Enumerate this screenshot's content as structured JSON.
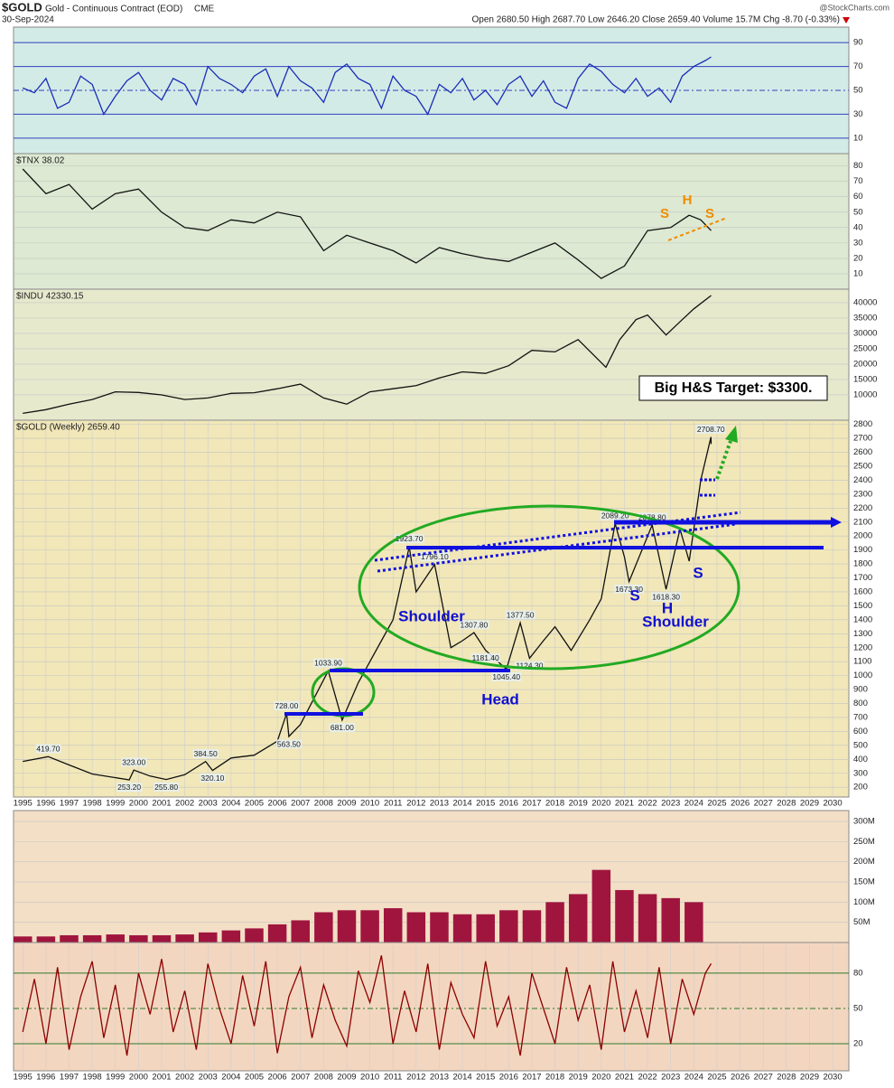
{
  "header": {
    "symbol": "$GOLD",
    "name": "Gold - Continuous Contract (EOD)",
    "exchange": "CME",
    "date": "30-Sep-2024",
    "quote": "Open 2680.50  High 2687.70  Low 2646.20  Close 2659.40  Volume 15.7M  Chg -8.70 (-0.33%)",
    "watermark": "@StockCharts.com"
  },
  "chart_data": [
    {
      "type": "line",
      "color": "#1a2db8",
      "grid_color": "#3040c0",
      "x": [
        1995,
        1995.5,
        1996,
        1996.5,
        1997,
        1997.5,
        1998,
        1998.5,
        1999,
        1999.5,
        2000,
        2000.5,
        2001,
        2001.5,
        2002,
        2002.5,
        2003,
        2003.5,
        2004,
        2004.5,
        2005,
        2005.5,
        2006,
        2006.5,
        2007,
        2007.5,
        2008,
        2008.5,
        2009,
        2009.5,
        2010,
        2010.5,
        2011,
        2011.5,
        2012,
        2012.5,
        2013,
        2013.5,
        2014,
        2014.5,
        2015,
        2015.5,
        2016,
        2016.5,
        2017,
        2017.5,
        2018,
        2018.5,
        2019,
        2019.5,
        2020,
        2020.5,
        2021,
        2021.5,
        2022,
        2022.5,
        2023,
        2023.5,
        2024,
        2024.5,
        2024.75
      ],
      "values": [
        52,
        48,
        60,
        35,
        40,
        62,
        55,
        30,
        45,
        58,
        65,
        50,
        42,
        60,
        55,
        38,
        70,
        60,
        55,
        48,
        62,
        68,
        45,
        70,
        58,
        52,
        40,
        65,
        72,
        60,
        55,
        35,
        62,
        50,
        45,
        30,
        55,
        48,
        60,
        42,
        50,
        38,
        55,
        62,
        45,
        58,
        40,
        35,
        60,
        72,
        66,
        55,
        48,
        60,
        45,
        52,
        40,
        62,
        70,
        75,
        78
      ],
      "xlim": [
        1994.6,
        2030.7
      ],
      "ylim": [
        -3,
        103
      ],
      "yticks": [
        10,
        30,
        50,
        70,
        90
      ]
    },
    {
      "type": "line",
      "label": "$TNX 38.02",
      "color": "#111111",
      "grid_color": "#c4c4c4",
      "x": [
        1995,
        1996,
        1997,
        1998,
        1999,
        2000,
        2001,
        2002,
        2003,
        2004,
        2005,
        2006,
        2007,
        2008,
        2009,
        2010,
        2011,
        2012,
        2013,
        2014,
        2015,
        2016,
        2017,
        2018,
        2019,
        2020,
        2021,
        2022,
        2023,
        2023.8,
        2024.3,
        2024.75
      ],
      "values": [
        78,
        62,
        68,
        52,
        62,
        65,
        50,
        40,
        38,
        45,
        43,
        50,
        47,
        25,
        35,
        30,
        25,
        17,
        27,
        23,
        20,
        18,
        24,
        30,
        19,
        7,
        15,
        38,
        40,
        48,
        45,
        38.02
      ],
      "xlim": [
        1994.6,
        2030.7
      ],
      "ylim": [
        0,
        88
      ],
      "yticks": [
        10,
        20,
        30,
        40,
        50,
        60,
        70,
        80
      ],
      "notes": [
        "S",
        "H",
        "S"
      ]
    },
    {
      "type": "line",
      "label": "$INDU 42330.15",
      "color": "#111111",
      "grid_color": "#c4c4c4",
      "x": [
        1995,
        1996,
        1997,
        1998,
        1999,
        2000,
        2001,
        2002,
        2003,
        2004,
        2005,
        2006,
        2007,
        2008,
        2009,
        2010,
        2011,
        2012,
        2013,
        2014,
        2015,
        2016,
        2017,
        2018,
        2019,
        2020.2,
        2020.8,
        2021.5,
        2022,
        2022.8,
        2023.5,
        2024,
        2024.75
      ],
      "values": [
        4000,
        5200,
        7000,
        8500,
        11000,
        10800,
        10000,
        8500,
        9000,
        10500,
        10700,
        12000,
        13500,
        9000,
        7000,
        11000,
        12000,
        13000,
        15500,
        17500,
        17000,
        19500,
        24500,
        24000,
        28000,
        19000,
        28000,
        34500,
        36000,
        29500,
        34500,
        38000,
        42330.15
      ],
      "xlim": [
        1994.6,
        2030.7
      ],
      "ylim": [
        1760,
        44400
      ],
      "yticks": [
        10000,
        15000,
        20000,
        25000,
        30000,
        35000,
        40000
      ],
      "notes": [
        "Big H&S Target: $3300."
      ]
    },
    {
      "type": "line",
      "label": "$GOLD (Weekly) 2659.40",
      "color": "#111111",
      "grid_color": "#c4c4c4",
      "x": [
        1995,
        1996.1,
        1997,
        1998,
        1999.6,
        1999.8,
        2000.5,
        2001.2,
        2002,
        2002.9,
        2003.2,
        2004,
        2005,
        2006,
        2006.4,
        2006.5,
        2007,
        2008.2,
        2008.8,
        2009.5,
        2010,
        2010.5,
        2011,
        2011.7,
        2012,
        2012.8,
        2013.5,
        2014,
        2014.5,
        2015,
        2015.9,
        2016.5,
        2016.9,
        2017.5,
        2018,
        2018.7,
        2019.5,
        2020,
        2020.6,
        2021,
        2021.2,
        2022.2,
        2022.8,
        2023.4,
        2023.8,
        2024,
        2024.3,
        2024.74,
        2024.75
      ],
      "values": [
        385,
        419.7,
        360,
        295,
        253.2,
        323,
        280,
        255.8,
        290,
        384.5,
        320.1,
        410,
        430,
        530,
        728,
        563.5,
        650,
        1033.9,
        681,
        950,
        1100,
        1250,
        1400,
        1923.7,
        1600,
        1796.1,
        1200,
        1250,
        1307.8,
        1181.4,
        1045.4,
        1377.5,
        1124.3,
        1250,
        1350,
        1180,
        1400,
        1550,
        2089.2,
        1850,
        1673.3,
        2078.8,
        1618.3,
        2050,
        1820,
        2050,
        2400,
        2708.7,
        2659.4
      ],
      "value_labels": [
        null,
        "419.70",
        null,
        null,
        "253.20",
        "323.00",
        null,
        "255.80",
        null,
        "384.50",
        "320.10",
        null,
        null,
        null,
        "728.00",
        "563.50",
        null,
        "1033.90",
        "681.00",
        null,
        null,
        null,
        null,
        "1923.70",
        null,
        "1796.10",
        null,
        null,
        "1307.80",
        "1181.40",
        "1045.40",
        "1377.50",
        "1124.30",
        null,
        null,
        null,
        null,
        null,
        "2089.20",
        null,
        "1673.30",
        "2078.80",
        "1618.30",
        null,
        null,
        null,
        null,
        "2708.70",
        null
      ],
      "xlim": [
        1994.6,
        2030.7
      ],
      "ylim": [
        130,
        2830
      ],
      "yticks": [
        200,
        300,
        400,
        500,
        600,
        700,
        800,
        900,
        1000,
        1100,
        1200,
        1300,
        1400,
        1500,
        1600,
        1700,
        1800,
        1900,
        2000,
        2100,
        2200,
        2300,
        2400,
        2500,
        2600,
        2700,
        2800
      ],
      "xticks": [
        1995,
        1996,
        1997,
        1998,
        1999,
        2000,
        2001,
        2002,
        2003,
        2004,
        2005,
        2006,
        2007,
        2008,
        2009,
        2010,
        2011,
        2012,
        2013,
        2014,
        2015,
        2016,
        2017,
        2018,
        2019,
        2020,
        2021,
        2022,
        2023,
        2024,
        2025,
        2026,
        2027,
        2028,
        2029,
        2030
      ],
      "notes": [
        "Shoulder",
        "Head",
        "S",
        "H",
        "Shoulder",
        "S"
      ]
    },
    {
      "type": "bar",
      "color": "#a0153e",
      "grid_color": "#c4c4c4",
      "x": [
        1995,
        1996,
        1997,
        1998,
        1999,
        2000,
        2001,
        2002,
        2003,
        2004,
        2005,
        2006,
        2007,
        2008,
        2009,
        2010,
        2011,
        2012,
        2013,
        2014,
        2015,
        2016,
        2017,
        2018,
        2019,
        2020,
        2021,
        2022,
        2023,
        2024
      ],
      "values": [
        15000000,
        15000000,
        18000000,
        18000000,
        20000000,
        18000000,
        18000000,
        20000000,
        25000000,
        30000000,
        35000000,
        45000000,
        55000000,
        75000000,
        80000000,
        80000000,
        85000000,
        75000000,
        75000000,
        70000000,
        70000000,
        80000000,
        80000000,
        100000000,
        120000000,
        180000000,
        130000000,
        120000000,
        110000000,
        100000000
      ],
      "xlim": [
        1994.6,
        2030.7
      ],
      "ylim": [
        0,
        327000000
      ],
      "yticks": [
        {
          "value": 50000000,
          "label": "50M"
        },
        {
          "value": 100000000,
          "label": "100M"
        },
        {
          "value": 150000000,
          "label": "150M"
        },
        {
          "value": 200000000,
          "label": "200M"
        },
        {
          "value": 250000000,
          "label": "250M"
        },
        {
          "value": 300000000,
          "label": "300M"
        }
      ]
    },
    {
      "type": "line",
      "color": "#8b0000",
      "grid_color": "#2a7a2a",
      "x": [
        1995,
        1995.5,
        1996,
        1996.5,
        1997,
        1997.5,
        1998,
        1998.5,
        1999,
        1999.5,
        2000,
        2000.5,
        2001,
        2001.5,
        2002,
        2002.5,
        2003,
        2003.5,
        2004,
        2004.5,
        2005,
        2005.5,
        2006,
        2006.5,
        2007,
        2007.5,
        2008,
        2008.5,
        2009,
        2009.5,
        2010,
        2010.5,
        2011,
        2011.5,
        2012,
        2012.5,
        2013,
        2013.5,
        2014,
        2014.5,
        2015,
        2015.5,
        2016,
        2016.5,
        2017,
        2017.5,
        2018,
        2018.5,
        2019,
        2019.5,
        2020,
        2020.5,
        2021,
        2021.5,
        2022,
        2022.5,
        2023,
        2023.5,
        2024,
        2024.5,
        2024.75
      ],
      "values": [
        30,
        75,
        20,
        85,
        15,
        60,
        90,
        25,
        70,
        10,
        80,
        45,
        92,
        30,
        65,
        15,
        88,
        50,
        20,
        78,
        35,
        90,
        12,
        60,
        85,
        25,
        70,
        40,
        18,
        82,
        55,
        95,
        20,
        65,
        30,
        88,
        15,
        72,
        45,
        25,
        90,
        35,
        60,
        10,
        80,
        50,
        20,
        85,
        40,
        70,
        15,
        90,
        30,
        65,
        25,
        85,
        20,
        75,
        45,
        80,
        88
      ],
      "xlim": [
        1994.6,
        2030.7
      ],
      "ylim": [
        -3,
        106
      ],
      "yticks": [
        20,
        50,
        80
      ],
      "xticks": [
        1995,
        1996,
        1997,
        1998,
        1999,
        2000,
        2001,
        2002,
        2003,
        2004,
        2005,
        2006,
        2007,
        2008,
        2009,
        2010,
        2011,
        2012,
        2013,
        2014,
        2015,
        2016,
        2017,
        2018,
        2019,
        2020,
        2021,
        2022,
        2023,
        2024,
        2025,
        2026,
        2027,
        2028,
        2029,
        2030
      ]
    }
  ]
}
